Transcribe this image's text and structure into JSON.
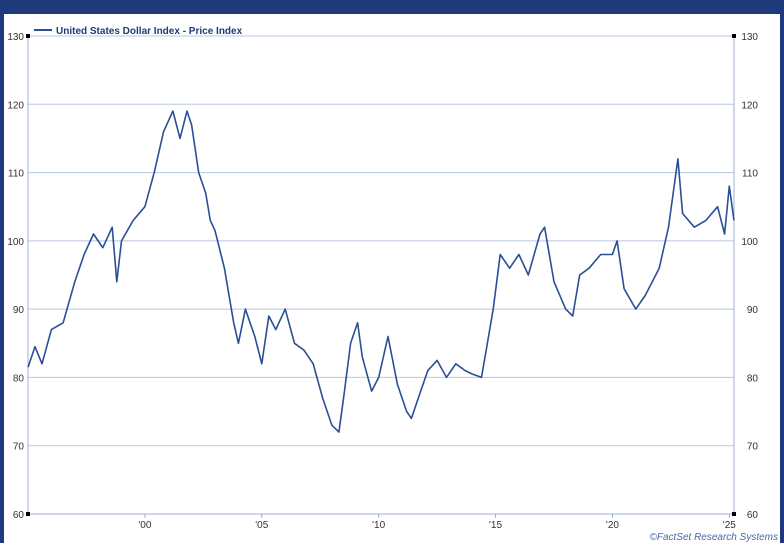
{
  "chart_data": {
    "type": "line",
    "title": "",
    "xlabel": "",
    "ylabel": "",
    "legend_position": "top-left",
    "grid": true,
    "dual_y_axis": true,
    "series_color": "#2a4f96",
    "series": [
      {
        "name": "United States Dollar Index - Price Index",
        "x": [
          1995.0,
          1995.3,
          1995.6,
          1996.0,
          1996.5,
          1997.0,
          1997.4,
          1997.8,
          1998.2,
          1998.6,
          1998.8,
          1999.0,
          1999.5,
          2000.0,
          2000.4,
          2000.8,
          2001.2,
          2001.5,
          2001.8,
          2002.0,
          2002.3,
          2002.6,
          2002.8,
          2003.0,
          2003.4,
          2003.8,
          2004.0,
          2004.3,
          2004.7,
          2005.0,
          2005.3,
          2005.6,
          2006.0,
          2006.4,
          2006.8,
          2007.2,
          2007.6,
          2008.0,
          2008.3,
          2008.5,
          2008.8,
          2009.1,
          2009.3,
          2009.7,
          2010.0,
          2010.4,
          2010.8,
          2011.2,
          2011.4,
          2011.8,
          2012.1,
          2012.5,
          2012.9,
          2013.3,
          2013.7,
          2014.0,
          2014.4,
          2014.6,
          2014.9,
          2015.2,
          2015.6,
          2016.0,
          2016.4,
          2016.9,
          2017.1,
          2017.5,
          2018.0,
          2018.3,
          2018.6,
          2019.0,
          2019.5,
          2020.0,
          2020.2,
          2020.5,
          2021.0,
          2021.4,
          2022.0,
          2022.4,
          2022.8,
          2023.0,
          2023.5,
          2024.0,
          2024.5,
          2024.8,
          2025.0,
          2025.2
        ],
        "values": [
          81.5,
          84.5,
          82.0,
          87.0,
          88.0,
          94.0,
          98.0,
          101.0,
          99.0,
          102.0,
          94.0,
          100.0,
          103.0,
          105.0,
          110.0,
          116.0,
          119.0,
          115.0,
          119.0,
          117.0,
          110.0,
          107.0,
          103.0,
          101.5,
          96.0,
          88.0,
          85.0,
          90.0,
          86.0,
          82.0,
          89.0,
          87.0,
          90.0,
          85.0,
          84.0,
          82.0,
          77.0,
          73.0,
          72.0,
          77.0,
          85.0,
          88.0,
          83.0,
          78.0,
          80.0,
          86.0,
          79.0,
          75.0,
          74.0,
          78.0,
          81.0,
          82.5,
          80.0,
          82.0,
          81.0,
          80.5,
          80.0,
          84.0,
          90.0,
          98.0,
          96.0,
          98.0,
          95.0,
          101.0,
          102.0,
          94.0,
          90.0,
          89.0,
          95.0,
          96.0,
          98.0,
          98.0,
          100.0,
          93.0,
          90.0,
          92.0,
          96.0,
          102.0,
          112.0,
          104.0,
          102.0,
          103.0,
          105.0,
          101.0,
          108.0,
          103.0
        ]
      }
    ],
    "xticks": [
      {
        "value": 2000,
        "label": "'00"
      },
      {
        "value": 2005,
        "label": "'05"
      },
      {
        "value": 2010,
        "label": "'10"
      },
      {
        "value": 2015,
        "label": "'15"
      },
      {
        "value": 2020,
        "label": "'20"
      },
      {
        "value": 2025,
        "label": "'25"
      }
    ],
    "xlim": [
      1995.0,
      2025.2
    ],
    "ylim": [
      60,
      130
    ],
    "yticks": [
      60,
      70,
      80,
      90,
      100,
      110,
      120,
      130
    ],
    "credit": "©FactSet Research Systems"
  }
}
